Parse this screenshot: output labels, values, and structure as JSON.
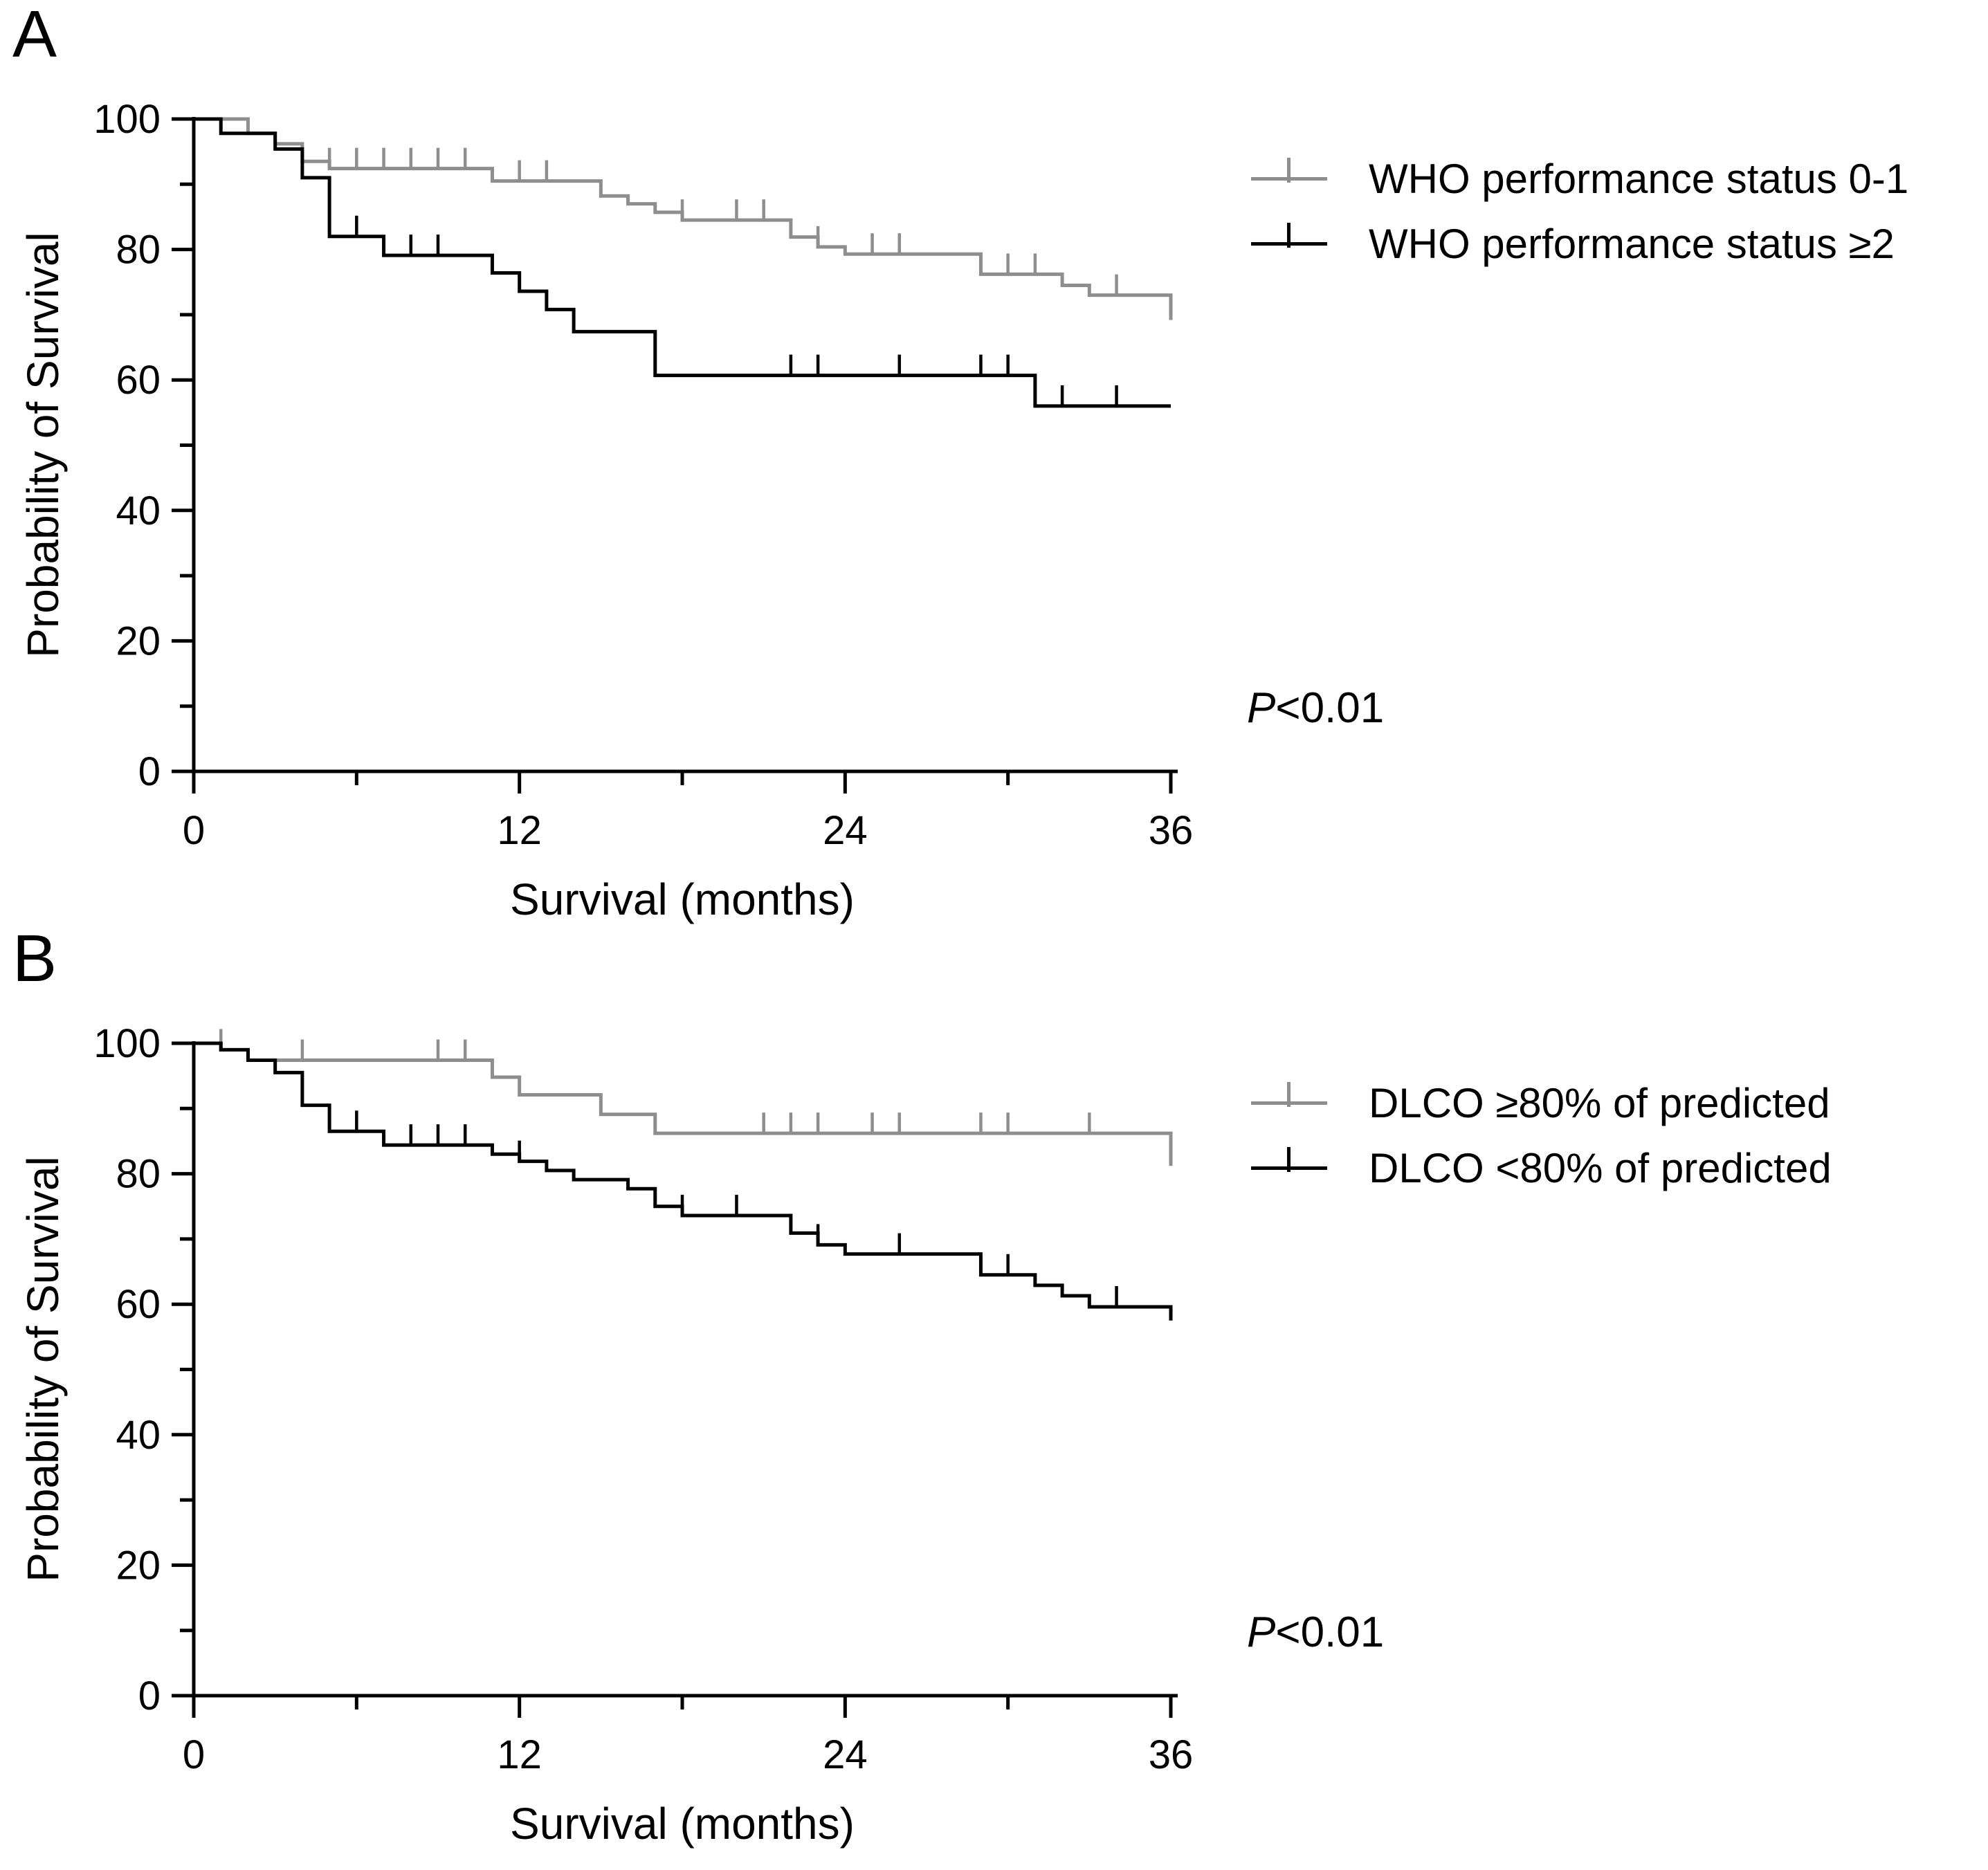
{
  "figure": {
    "background": "#ffffff",
    "description": "Two-panel Kaplan-Meier survival figure"
  },
  "panels": [
    {
      "label": "A",
      "p_value": {
        "italic": "P",
        "rest": "<0.01"
      },
      "legend": [
        {
          "label": "WHO performance status 0-1",
          "color": "#8e8e8e"
        },
        {
          "label": "WHO performance status ≥2",
          "color": "#000000"
        }
      ],
      "chart_data": {
        "type": "line",
        "subtype": "kaplan_meier_step",
        "title": "",
        "xlabel": "Survival (months)",
        "ylabel": "Probability of Survival",
        "xlim": [
          0,
          36
        ],
        "ylim": [
          0,
          100
        ],
        "x_ticks": [
          0,
          12,
          24,
          36
        ],
        "x_minor_ticks": [
          6,
          18,
          30
        ],
        "y_ticks": [
          0,
          20,
          40,
          60,
          80,
          100
        ],
        "y_minor_ticks": [
          10,
          30,
          50,
          70,
          90
        ],
        "grid": false,
        "legend_position": "right",
        "series": [
          {
            "name": "WHO performance status 0-1",
            "color": "#8e8e8e",
            "steps": [
              [
                0,
                100
              ],
              [
                2,
                97.8
              ],
              [
                3,
                96.2
              ],
              [
                4,
                93.5
              ],
              [
                5,
                92.4
              ],
              [
                11,
                90.5
              ],
              [
                15,
                88.2
              ],
              [
                16,
                87.0
              ],
              [
                17,
                85.7
              ],
              [
                18,
                84.5
              ],
              [
                22,
                81.9
              ],
              [
                23,
                80.4
              ],
              [
                24,
                79.3
              ],
              [
                29,
                76.2
              ],
              [
                32,
                74.5
              ],
              [
                33,
                73.0
              ],
              [
                36,
                69.2
              ]
            ],
            "censors": [
              5,
              6,
              7,
              8,
              9,
              10,
              12,
              13,
              18,
              20,
              21,
              23,
              25,
              26,
              30,
              31,
              34
            ]
          },
          {
            "name": "WHO performance status ≥2",
            "color": "#000000",
            "steps": [
              [
                0,
                100
              ],
              [
                1,
                97.8
              ],
              [
                3,
                95.4
              ],
              [
                4,
                91.0
              ],
              [
                5,
                82.0
              ],
              [
                7,
                79.1
              ],
              [
                11,
                76.4
              ],
              [
                12,
                73.6
              ],
              [
                13,
                70.8
              ],
              [
                14,
                67.4
              ],
              [
                17,
                60.7
              ],
              [
                31,
                56.0
              ]
            ],
            "censors": [
              6,
              8,
              9,
              22,
              23,
              26,
              29,
              30,
              32,
              34
            ]
          }
        ]
      }
    },
    {
      "label": "B",
      "p_value": {
        "italic": "P",
        "rest": "<0.01"
      },
      "legend": [
        {
          "label": "DLCO ≥80% of predicted",
          "color": "#8e8e8e"
        },
        {
          "label": "DLCO <80% of predicted",
          "color": "#000000"
        }
      ],
      "chart_data": {
        "type": "line",
        "subtype": "kaplan_meier_step",
        "title": "",
        "xlabel": "Survival (months)",
        "ylabel": "Probability of Survival",
        "xlim": [
          0,
          36
        ],
        "ylim": [
          0,
          100
        ],
        "x_ticks": [
          0,
          12,
          24,
          36
        ],
        "x_minor_ticks": [
          6,
          18,
          30
        ],
        "y_ticks": [
          0,
          20,
          40,
          60,
          80,
          100
        ],
        "y_minor_ticks": [
          10,
          30,
          50,
          70,
          90
        ],
        "grid": false,
        "legend_position": "right",
        "series": [
          {
            "name": "DLCO ≥80% of predicted",
            "color": "#8e8e8e",
            "steps": [
              [
                0,
                100
              ],
              [
                1,
                99.0
              ],
              [
                2,
                97.4
              ],
              [
                11,
                94.8
              ],
              [
                12,
                92.1
              ],
              [
                15,
                89.1
              ],
              [
                17,
                86.2
              ],
              [
                36,
                81.2
              ]
            ],
            "censors": [
              1,
              4,
              9,
              10,
              21,
              22,
              23,
              25,
              26,
              29,
              30,
              33
            ]
          },
          {
            "name": "DLCO <80% of predicted",
            "color": "#000000",
            "steps": [
              [
                0,
                100
              ],
              [
                1,
                99.0
              ],
              [
                2,
                97.4
              ],
              [
                3,
                95.5
              ],
              [
                4,
                90.5
              ],
              [
                5,
                86.5
              ],
              [
                7,
                84.4
              ],
              [
                11,
                83.0
              ],
              [
                12,
                81.9
              ],
              [
                13,
                80.5
              ],
              [
                14,
                79.1
              ],
              [
                16,
                77.7
              ],
              [
                17,
                75.0
              ],
              [
                18,
                73.6
              ],
              [
                22,
                70.9
              ],
              [
                23,
                69.1
              ],
              [
                24,
                67.7
              ],
              [
                29,
                64.5
              ],
              [
                31,
                62.9
              ],
              [
                32,
                61.3
              ],
              [
                33,
                59.6
              ],
              [
                36,
                57.5
              ]
            ],
            "censors": [
              6,
              8,
              9,
              10,
              12,
              18,
              20,
              23,
              26,
              30,
              34
            ]
          }
        ]
      }
    }
  ]
}
